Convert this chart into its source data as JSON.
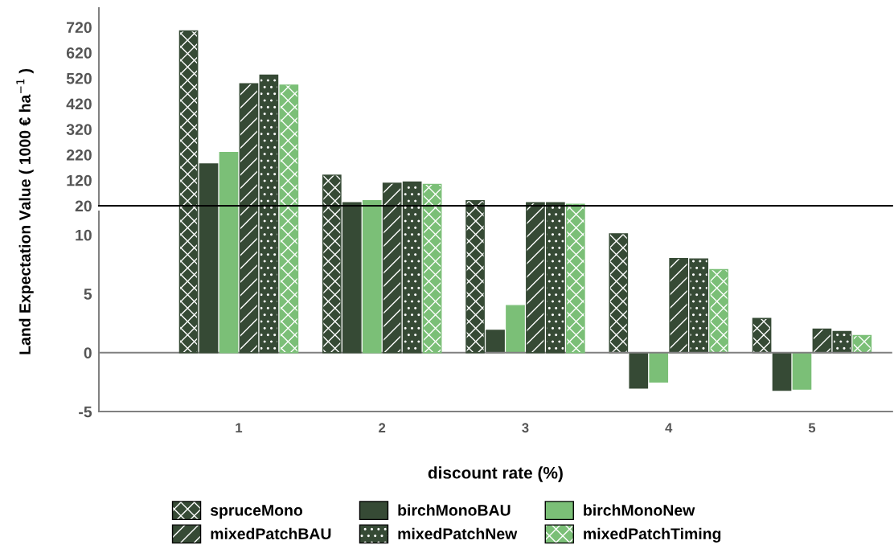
{
  "chart_data": [
    {
      "type": "bar",
      "ylabel": "Land Expectation Value ( 1000 € ha$^{−1}$ )",
      "categories": [
        "1",
        "2",
        "3",
        "4",
        "5"
      ],
      "ylim": [
        20,
        795
      ],
      "yticks": [
        20,
        120,
        220,
        320,
        420,
        520,
        620,
        720
      ],
      "tick_labels": "y",
      "grid": false,
      "legend": "bottom",
      "series": [
        {
          "name": "spruceMono",
          "color": "#364a35",
          "values": [
            705,
            140,
            40,
            null,
            null
          ]
        },
        {
          "name": "birchMonoBAU",
          "color": "#364a35",
          "values": [
            184,
            32,
            null,
            null,
            null
          ]
        },
        {
          "name": "birchMonoNew",
          "color": "#7bbf77",
          "values": [
            229,
            40,
            null,
            null,
            null
          ]
        },
        {
          "name": "mixedPatchBAU",
          "color": "#364a35",
          "values": [
            498,
            108,
            32,
            null,
            null
          ]
        },
        {
          "name": "mixedPatchNew",
          "color": "#364a35",
          "values": [
            532,
            113,
            32,
            null,
            null
          ]
        },
        {
          "name": "mixedPatchTiming",
          "color": "#7bbf77",
          "values": [
            493,
            104,
            26,
            null,
            null
          ]
        }
      ]
    },
    {
      "type": "bar",
      "xlabel": "discount rate (%)",
      "categories": [
        "1",
        "2",
        "3",
        "4",
        "5"
      ],
      "ylim": [
        -5,
        12
      ],
      "yticks": [
        -5,
        0,
        5,
        10
      ],
      "grid": false,
      "ref_lines": [
        {
          "axis": "y",
          "value": 0,
          "color": "#808080"
        }
      ],
      "series": [
        {
          "color": "#364a35",
          "values": [
            null,
            null,
            null,
            10.1,
            2.9
          ]
        },
        {
          "color": "#364a35",
          "values": [
            null,
            null,
            1.9,
            -3.0,
            -3.2
          ]
        },
        {
          "color": "#7bbf77",
          "values": [
            null,
            null,
            4.0,
            -2.5,
            -3.1
          ]
        },
        {
          "color": "#364a35",
          "values": [
            null,
            null,
            null,
            8.0,
            2.0
          ]
        },
        {
          "color": "#364a35",
          "values": [
            null,
            null,
            null,
            7.96,
            1.8
          ]
        },
        {
          "color": "#7bbf77",
          "values": [
            null,
            null,
            null,
            7.05,
            1.45
          ]
        }
      ]
    }
  ]
}
